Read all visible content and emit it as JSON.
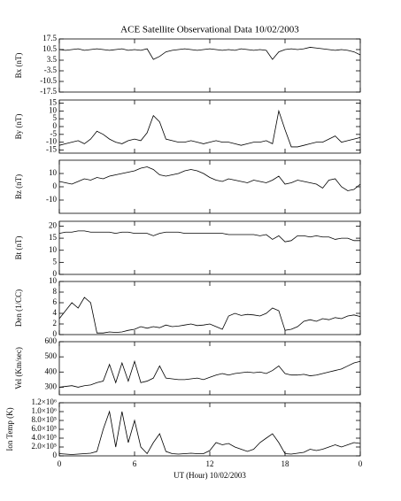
{
  "chart_data": [
    {
      "type": "line",
      "title": "ACE Satellite Observational Data   10/02/2003",
      "ylabel": "Bx (nT)",
      "color": "#000000",
      "x": [
        0,
        0.5,
        1,
        1.5,
        2,
        2.5,
        3,
        3.5,
        4,
        4.5,
        5,
        5.5,
        6,
        6.5,
        7,
        7.5,
        8,
        8.5,
        9,
        9.5,
        10,
        10.5,
        11,
        11.5,
        12,
        12.5,
        13,
        13.5,
        14,
        14.5,
        15,
        15.5,
        16,
        16.5,
        17,
        17.5,
        18,
        18.5,
        19,
        19.5,
        20,
        20.5,
        21,
        21.5,
        22,
        22.5,
        23,
        23.5,
        24
      ],
      "values": [
        10.5,
        10,
        10.5,
        11,
        10,
        10.5,
        11,
        10.5,
        10,
        10.5,
        11,
        10,
        10.5,
        10,
        11,
        4,
        6,
        9,
        10,
        10.5,
        11,
        10.5,
        10,
        10.5,
        11,
        10.5,
        10,
        10.5,
        10,
        11,
        10.5,
        10,
        10.5,
        10,
        4,
        9,
        10.5,
        11,
        10.5,
        11,
        12,
        11.5,
        11,
        10.5,
        10,
        10.5,
        10,
        9,
        7
      ],
      "xlim": [
        0,
        24
      ],
      "xticks": [
        0,
        6,
        12,
        18,
        {
          "value": 24,
          "label": "0"
        }
      ],
      "ylim": [
        -17.5,
        17.5
      ],
      "yticks": [
        17.5,
        10.5,
        3.5,
        -3.5,
        -10.5,
        -17.5
      ]
    },
    {
      "type": "line",
      "ylabel": "By (nT)",
      "color": "#000000",
      "x": [
        0,
        0.5,
        1,
        1.5,
        2,
        2.5,
        3,
        3.5,
        4,
        4.5,
        5,
        5.5,
        6,
        6.5,
        7,
        7.5,
        8,
        8.5,
        9,
        9.5,
        10,
        10.5,
        11,
        11.5,
        12,
        12.5,
        13,
        13.5,
        14,
        14.5,
        15,
        15.5,
        16,
        16.5,
        17,
        17.5,
        18,
        18.5,
        19,
        19.5,
        20,
        20.5,
        21,
        21.5,
        22,
        22.5,
        23,
        23.5,
        24
      ],
      "values": [
        -12,
        -11,
        -10,
        -9,
        -11,
        -8,
        -3,
        -5,
        -8,
        -10,
        -11,
        -9,
        -8,
        -9,
        -4,
        7,
        3,
        -8,
        -9,
        -10,
        -10,
        -9,
        -10,
        -11,
        -10,
        -9,
        -10,
        -10,
        -11,
        -12,
        -11,
        -10,
        -10,
        -9,
        -11,
        10,
        -2,
        -13,
        -13,
        -12,
        -11,
        -10,
        -10,
        -8,
        -6,
        -10,
        -9,
        -8,
        -7
      ],
      "xlim": [
        0,
        24
      ],
      "xticks": [
        0,
        6,
        12,
        18,
        {
          "value": 24,
          "label": "0"
        }
      ],
      "ylim": [
        -17,
        17
      ],
      "yticks": [
        15,
        10,
        5,
        0,
        -5,
        -10,
        -15
      ]
    },
    {
      "type": "line",
      "ylabel": "Bz (nT)",
      "color": "#000000",
      "x": [
        0,
        0.5,
        1,
        1.5,
        2,
        2.5,
        3,
        3.5,
        4,
        4.5,
        5,
        5.5,
        6,
        6.5,
        7,
        7.5,
        8,
        8.5,
        9,
        9.5,
        10,
        10.5,
        11,
        11.5,
        12,
        12.5,
        13,
        13.5,
        14,
        14.5,
        15,
        15.5,
        16,
        16.5,
        17,
        17.5,
        18,
        18.5,
        19,
        19.5,
        20,
        20.5,
        21,
        21.5,
        22,
        22.5,
        23,
        23.5,
        24
      ],
      "values": [
        4,
        3,
        2,
        4,
        6,
        5,
        7,
        6,
        8,
        9,
        10,
        11,
        12,
        14,
        15,
        13,
        9,
        8,
        9,
        10,
        12,
        13,
        12,
        10,
        7,
        5,
        4,
        6,
        5,
        4,
        3,
        5,
        4,
        3,
        5,
        8,
        2,
        3,
        5,
        4,
        3,
        2,
        -1,
        5,
        6,
        0,
        -3,
        -2,
        2
      ],
      "xlim": [
        0,
        24
      ],
      "xticks": [
        0,
        6,
        12,
        18,
        {
          "value": 24,
          "label": "0"
        }
      ],
      "ylim": [
        -20,
        20
      ],
      "yticks": [
        10,
        0,
        -10
      ]
    },
    {
      "type": "line",
      "ylabel": "Bt (nT)",
      "color": "#000000",
      "x": [
        0,
        0.5,
        1,
        1.5,
        2,
        2.5,
        3,
        3.5,
        4,
        4.5,
        5,
        5.5,
        6,
        6.5,
        7,
        7.5,
        8,
        8.5,
        9,
        9.5,
        10,
        10.5,
        11,
        11.5,
        12,
        12.5,
        13,
        13.5,
        14,
        14.5,
        15,
        15.5,
        16,
        16.5,
        17,
        17.5,
        18,
        18.5,
        19,
        19.5,
        20,
        20.5,
        21,
        21.5,
        22,
        22.5,
        23,
        23.5,
        24
      ],
      "values": [
        17,
        17.5,
        17.5,
        18,
        18,
        17.5,
        17.5,
        17.5,
        17.5,
        17,
        17.5,
        17.5,
        17,
        17,
        17,
        16,
        17,
        17.5,
        17.5,
        17.5,
        17,
        17,
        17,
        17,
        17,
        17,
        17,
        16.5,
        16.5,
        16.5,
        16.5,
        16.5,
        16,
        16.5,
        14.5,
        16,
        13.5,
        14,
        16,
        16,
        15.5,
        16,
        15.5,
        15.5,
        14.5,
        15,
        15,
        14,
        14
      ],
      "xlim": [
        0,
        24
      ],
      "xticks": [
        0,
        6,
        12,
        18,
        {
          "value": 24,
          "label": "0"
        }
      ],
      "ylim": [
        0,
        22
      ],
      "yticks": [
        20,
        15,
        10,
        5,
        0
      ]
    },
    {
      "type": "line",
      "ylabel": "Den (1/CC)",
      "color": "#000000",
      "x": [
        0,
        0.5,
        1,
        1.5,
        2,
        2.5,
        3,
        3.5,
        4,
        4.5,
        5,
        5.5,
        6,
        6.5,
        7,
        7.5,
        8,
        8.5,
        9,
        9.5,
        10,
        10.5,
        11,
        11.5,
        12,
        12.5,
        13,
        13.5,
        14,
        14.5,
        15,
        15.5,
        16,
        16.5,
        17,
        17.5,
        18,
        18.5,
        19,
        19.5,
        20,
        20.5,
        21,
        21.5,
        22,
        22.5,
        23,
        23.5,
        24
      ],
      "values": [
        3,
        4.5,
        6,
        5,
        7,
        6,
        0.3,
        0.3,
        0.5,
        0.4,
        0.5,
        0.8,
        1,
        1.5,
        1.2,
        1.5,
        1.3,
        1.8,
        1.5,
        1.6,
        1.8,
        2,
        1.7,
        1.8,
        2,
        1.5,
        1,
        3.5,
        4,
        3.6,
        3.8,
        3.7,
        3.5,
        4,
        5,
        4.5,
        0.8,
        1,
        1.5,
        2.5,
        2.8,
        2.5,
        3,
        2.8,
        3.2,
        3,
        3.5,
        3.7,
        3.4
      ],
      "xlim": [
        0,
        24
      ],
      "xticks": [
        0,
        6,
        12,
        18,
        {
          "value": 24,
          "label": "0"
        }
      ],
      "ylim": [
        0,
        10
      ],
      "yticks": [
        10,
        8,
        6,
        4,
        2,
        0
      ]
    },
    {
      "type": "line",
      "ylabel": "Vel (Km/sec)",
      "color": "#000000",
      "x": [
        0,
        0.5,
        1,
        1.5,
        2,
        2.5,
        3,
        3.5,
        4,
        4.5,
        5,
        5.5,
        6,
        6.5,
        7,
        7.5,
        8,
        8.5,
        9,
        9.5,
        10,
        10.5,
        11,
        11.5,
        12,
        12.5,
        13,
        13.5,
        14,
        14.5,
        15,
        15.5,
        16,
        16.5,
        17,
        17.5,
        18,
        18.5,
        19,
        19.5,
        20,
        20.5,
        21,
        21.5,
        22,
        22.5,
        23,
        23.5,
        24
      ],
      "values": [
        300,
        305,
        310,
        300,
        310,
        315,
        330,
        340,
        450,
        330,
        460,
        340,
        470,
        330,
        340,
        360,
        440,
        360,
        355,
        350,
        350,
        355,
        360,
        350,
        365,
        380,
        390,
        380,
        390,
        395,
        400,
        395,
        400,
        390,
        410,
        440,
        390,
        380,
        380,
        385,
        375,
        380,
        390,
        400,
        410,
        420,
        440,
        460,
        470
      ],
      "xlim": [
        0,
        24
      ],
      "xticks": [
        0,
        6,
        12,
        18,
        {
          "value": 24,
          "label": "0"
        }
      ],
      "ylim": [
        250,
        600
      ],
      "yticks": [
        600,
        500,
        400,
        300
      ]
    },
    {
      "type": "line",
      "ylabel": "Ion Temp (K)",
      "xlabel": "UT (Hour)   10/02/2003",
      "color": "#000000",
      "x": [
        0,
        0.5,
        1,
        1.5,
        2,
        2.5,
        3,
        3.5,
        4,
        4.5,
        5,
        5.5,
        6,
        6.5,
        7,
        7.5,
        8,
        8.5,
        9,
        9.5,
        10,
        10.5,
        11,
        11.5,
        12,
        12.5,
        13,
        13.5,
        14,
        14.5,
        15,
        15.5,
        16,
        16.5,
        17,
        17.5,
        18,
        18.5,
        19,
        19.5,
        20,
        20.5,
        21,
        21.5,
        22,
        22.5,
        23,
        23.5,
        24
      ],
      "values": [
        50000,
        40000,
        30000,
        40000,
        50000,
        60000,
        100000,
        600000,
        1000000,
        200000,
        1000000,
        300000,
        800000,
        200000,
        50000,
        300000,
        500000,
        100000,
        50000,
        40000,
        50000,
        60000,
        50000,
        50000,
        120000,
        300000,
        250000,
        280000,
        200000,
        150000,
        100000,
        150000,
        300000,
        400000,
        500000,
        300000,
        50000,
        40000,
        60000,
        80000,
        150000,
        120000,
        150000,
        200000,
        250000,
        200000,
        250000,
        300000,
        280000
      ],
      "xlim": [
        0,
        24
      ],
      "xticks": [
        0,
        6,
        12,
        18,
        {
          "value": 24,
          "label": "0"
        }
      ],
      "ylim": [
        0,
        1200000
      ],
      "yticks": [
        {
          "value": 1200000,
          "label": "1.2×10⁶"
        },
        {
          "value": 1000000,
          "label": "1.0×10⁶"
        },
        {
          "value": 800000,
          "label": "8.0×10⁵"
        },
        {
          "value": 600000,
          "label": "6.0×10⁵"
        },
        {
          "value": 400000,
          "label": "4.0×10⁵"
        },
        {
          "value": 200000,
          "label": "2.0×10⁵"
        },
        0
      ]
    }
  ]
}
